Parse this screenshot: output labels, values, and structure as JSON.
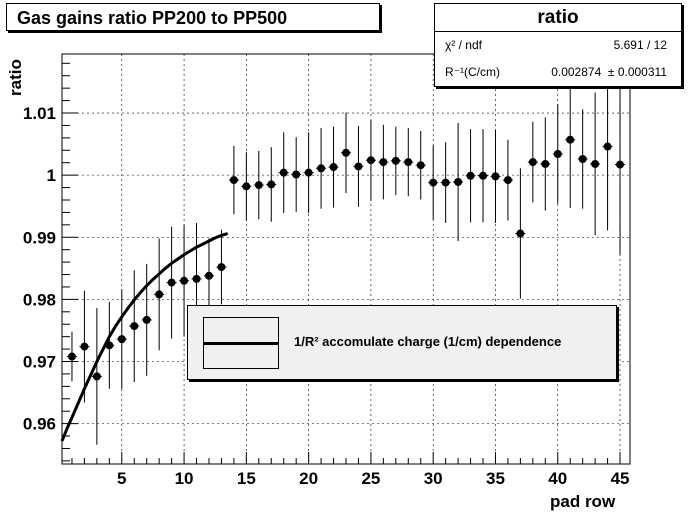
{
  "title": "Gas gains ratio PP200 to PP500",
  "stats": {
    "name": "ratio",
    "rows": [
      {
        "label": "χ² / ndf",
        "value": "5.691 / 12"
      },
      {
        "label": "R⁻¹(C/cm)",
        "value": "0.002874  ± 0.000311"
      }
    ]
  },
  "legend": {
    "entry": "1/R² accomulate charge (1/cm) dependence"
  },
  "chart_data": {
    "type": "scatter",
    "xlabel": "pad row",
    "ylabel": "ratio",
    "xlim": [
      0.2,
      45.8
    ],
    "ylim": [
      0.9535,
      1.0195
    ],
    "x_ticks": [
      5,
      10,
      15,
      20,
      25,
      30,
      35,
      40,
      45
    ],
    "y_ticks": [
      0.96,
      0.97,
      0.98,
      0.99,
      1.0,
      1.01
    ],
    "y_tick_labels": [
      "0.96",
      "0.97",
      "0.98",
      "0.99",
      "1",
      "1.01"
    ],
    "grid": true,
    "series": [
      {
        "x": [
          1,
          2,
          3,
          4,
          5,
          6,
          7,
          8,
          9,
          10,
          11,
          12,
          13,
          14,
          15,
          16,
          17,
          18,
          19,
          20,
          21,
          22,
          23,
          24,
          25,
          26,
          27,
          28,
          29,
          30,
          31,
          32,
          33,
          34,
          35,
          36,
          37,
          38,
          39,
          40,
          41,
          42,
          43,
          44,
          45
        ],
        "y": [
          0.9708,
          0.9724,
          0.9676,
          0.9726,
          0.9736,
          0.9757,
          0.9767,
          0.9808,
          0.9827,
          0.983,
          0.9833,
          0.9838,
          0.9852,
          0.9992,
          0.9982,
          0.9984,
          0.9985,
          1.0004,
          1.0001,
          1.0004,
          1.0011,
          1.0013,
          1.0036,
          1.0014,
          1.0024,
          1.0021,
          1.0023,
          1.0021,
          1.0016,
          0.9988,
          0.9988,
          0.9989,
          0.9999,
          0.9999,
          0.9998,
          0.9992,
          0.9906,
          1.0021,
          1.0018,
          1.0034,
          1.0057,
          1.0026,
          1.0018,
          1.0046,
          1.0017
        ],
        "err": [
          0.004,
          0.009,
          0.011,
          0.007,
          0.008,
          0.009,
          0.009,
          0.009,
          0.009,
          0.009,
          0.009,
          0.006,
          0.006,
          0.0055,
          0.0055,
          0.0055,
          0.006,
          0.0065,
          0.006,
          0.0065,
          0.0065,
          0.0065,
          0.0065,
          0.0065,
          0.0065,
          0.006,
          0.0055,
          0.0055,
          0.0055,
          0.006,
          0.0065,
          0.0095,
          0.0075,
          0.0075,
          0.0075,
          0.0065,
          0.0105,
          0.0065,
          0.0075,
          0.008,
          0.011,
          0.008,
          0.0115,
          0.0135,
          0.0145
        ]
      }
    ],
    "fit_curve": {
      "x": [
        0.2,
        0.6,
        1,
        1.5,
        2,
        2.5,
        3,
        3.5,
        4,
        4.5,
        5,
        5.5,
        6,
        6.5,
        7,
        7.5,
        8,
        8.5,
        9,
        9.5,
        10,
        10.5,
        11,
        11.5,
        12,
        12.5,
        13,
        13.5
      ],
      "y": [
        0.9572,
        0.9592,
        0.961,
        0.9633,
        0.9656,
        0.9678,
        0.97,
        0.972,
        0.974,
        0.9757,
        0.9772,
        0.9786,
        0.9799,
        0.9811,
        0.9822,
        0.9832,
        0.9841,
        0.985,
        0.9858,
        0.9865,
        0.9872,
        0.9878,
        0.9884,
        0.9889,
        0.9894,
        0.9899,
        0.9903,
        0.9906
      ]
    }
  }
}
